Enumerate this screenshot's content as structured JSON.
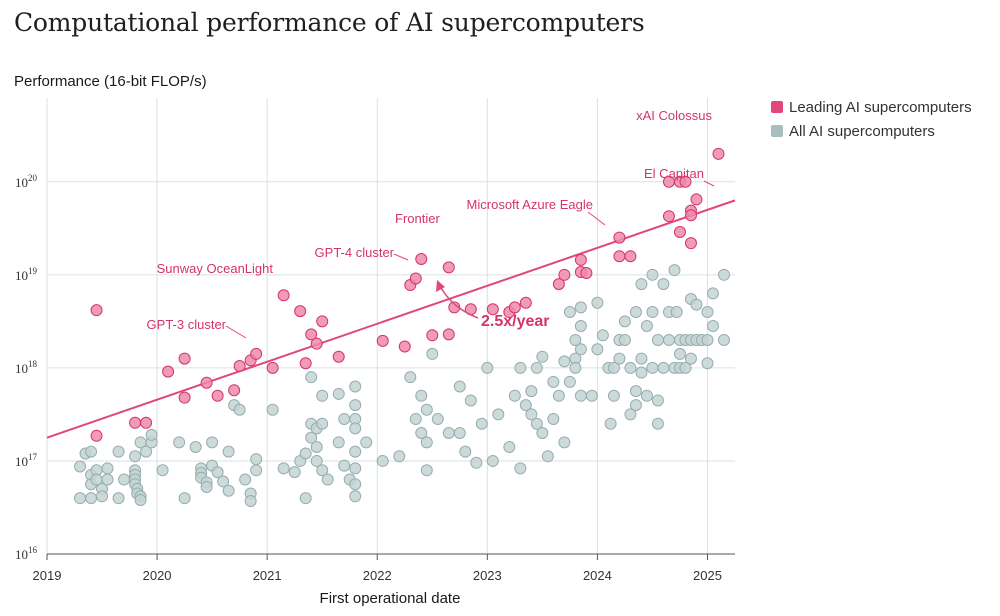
{
  "chart_data": {
    "type": "scatter",
    "title": "Computational performance of AI supercomputers",
    "ylabel": "Performance (16-bit FLOP/s)",
    "xlabel": "First operational date",
    "yscale": "log",
    "ylim_exp": [
      16,
      20.9
    ],
    "xlim": [
      2019,
      2025.25
    ],
    "x_ticks": [
      "2019",
      "2020",
      "2021",
      "2022",
      "2023",
      "2024",
      "2025"
    ],
    "y_ticks": [
      {
        "base": "10",
        "exp": "16"
      },
      {
        "base": "10",
        "exp": "17"
      },
      {
        "base": "10",
        "exp": "18"
      },
      {
        "base": "10",
        "exp": "19"
      },
      {
        "base": "10",
        "exp": "20"
      }
    ],
    "legend": {
      "leading": "Leading AI supercomputers",
      "all": "All AI supercomputers"
    },
    "colors": {
      "leading_fill": "#ee89ab",
      "leading_stroke": "#d4336f",
      "all_fill": "#c3d3d3",
      "all_stroke": "#97adad",
      "trend": "#e0487d",
      "grid": "#d9e2e2",
      "axis": "#555555"
    },
    "trend": {
      "label": "2.5x/year",
      "start": [
        2019,
        17.25
      ],
      "end": [
        2025.25,
        19.8
      ]
    },
    "annotations": [
      {
        "text": "xAI Colossus",
        "x": 2025.1,
        "y": 20.3
      },
      {
        "text": "El Capitan",
        "x": 2024.85,
        "y": 19.75
      },
      {
        "text": "Microsoft Azure Eagle",
        "x": 2023.85,
        "y": 19.45
      },
      {
        "text": "Frontier",
        "x": 2022.4,
        "y": 19.3
      },
      {
        "text": "GPT-4 cluster",
        "x": 2022.35,
        "y": 18.95
      },
      {
        "text": "Sunway OceanLight",
        "x": 2021.15,
        "y": 18.78
      },
      {
        "text": "GPT-3 cluster",
        "x": 2020.8,
        "y": 18.15
      }
    ],
    "series": [
      {
        "name": "Leading AI supercomputers",
        "points": [
          [
            2019.45,
            18.62
          ],
          [
            2019.45,
            17.27
          ],
          [
            2019.8,
            17.41
          ],
          [
            2019.9,
            17.41
          ],
          [
            2020.1,
            17.96
          ],
          [
            2020.25,
            18.1
          ],
          [
            2020.25,
            17.68
          ],
          [
            2020.45,
            17.84
          ],
          [
            2020.55,
            17.7
          ],
          [
            2020.7,
            17.76
          ],
          [
            2020.75,
            18.02
          ],
          [
            2020.85,
            18.08
          ],
          [
            2020.9,
            18.15
          ],
          [
            2021.05,
            18.0
          ],
          [
            2021.15,
            18.78
          ],
          [
            2021.3,
            18.61
          ],
          [
            2021.35,
            18.05
          ],
          [
            2021.4,
            18.36
          ],
          [
            2021.5,
            18.5
          ],
          [
            2021.45,
            18.26
          ],
          [
            2021.65,
            18.12
          ],
          [
            2022.05,
            18.29
          ],
          [
            2022.25,
            18.23
          ],
          [
            2022.3,
            18.89
          ],
          [
            2022.35,
            18.96
          ],
          [
            2022.4,
            19.17
          ],
          [
            2022.5,
            18.35
          ],
          [
            2022.65,
            18.36
          ],
          [
            2022.65,
            19.08
          ],
          [
            2022.7,
            18.65
          ],
          [
            2022.85,
            18.63
          ],
          [
            2023.05,
            18.63
          ],
          [
            2023.2,
            18.6
          ],
          [
            2023.25,
            18.65
          ],
          [
            2023.35,
            18.7
          ],
          [
            2023.65,
            18.9
          ],
          [
            2023.7,
            19.0
          ],
          [
            2023.85,
            19.16
          ],
          [
            2023.85,
            19.03
          ],
          [
            2023.9,
            19.02
          ],
          [
            2024.2,
            19.4
          ],
          [
            2024.2,
            19.2
          ],
          [
            2024.3,
            19.2
          ],
          [
            2024.65,
            19.63
          ],
          [
            2024.65,
            20.0
          ],
          [
            2024.75,
            20.0
          ],
          [
            2024.8,
            20.0
          ],
          [
            2024.75,
            19.46
          ],
          [
            2024.85,
            19.34
          ],
          [
            2024.85,
            19.69
          ],
          [
            2024.85,
            19.64
          ],
          [
            2024.9,
            19.81
          ],
          [
            2025.1,
            20.3
          ]
        ]
      },
      {
        "name": "All AI supercomputers",
        "points": [
          [
            2019.3,
            16.94
          ],
          [
            2019.3,
            16.6
          ],
          [
            2019.35,
            17.08
          ],
          [
            2019.4,
            17.1
          ],
          [
            2019.4,
            16.85
          ],
          [
            2019.4,
            16.75
          ],
          [
            2019.4,
            16.6
          ],
          [
            2019.45,
            16.9
          ],
          [
            2019.45,
            16.8
          ],
          [
            2019.5,
            16.7
          ],
          [
            2019.5,
            16.62
          ],
          [
            2019.55,
            16.92
          ],
          [
            2019.55,
            16.8
          ],
          [
            2019.65,
            17.1
          ],
          [
            2019.65,
            16.6
          ],
          [
            2019.7,
            16.8
          ],
          [
            2019.8,
            17.05
          ],
          [
            2019.8,
            16.9
          ],
          [
            2019.8,
            16.85
          ],
          [
            2019.8,
            16.8
          ],
          [
            2019.8,
            16.75
          ],
          [
            2019.82,
            16.7
          ],
          [
            2019.82,
            16.65
          ],
          [
            2019.85,
            16.62
          ],
          [
            2019.85,
            16.58
          ],
          [
            2019.85,
            17.2
          ],
          [
            2019.9,
            17.1
          ],
          [
            2019.95,
            17.2
          ],
          [
            2019.95,
            17.28
          ],
          [
            2020.05,
            16.9
          ],
          [
            2020.2,
            17.2
          ],
          [
            2020.25,
            16.6
          ],
          [
            2020.35,
            17.15
          ],
          [
            2020.4,
            16.92
          ],
          [
            2020.4,
            16.87
          ],
          [
            2020.4,
            16.82
          ],
          [
            2020.45,
            16.77
          ],
          [
            2020.45,
            16.72
          ],
          [
            2020.5,
            17.2
          ],
          [
            2020.5,
            16.95
          ],
          [
            2020.55,
            16.88
          ],
          [
            2020.6,
            16.78
          ],
          [
            2020.65,
            17.1
          ],
          [
            2020.65,
            16.68
          ],
          [
            2020.7,
            17.6
          ],
          [
            2020.75,
            17.55
          ],
          [
            2020.8,
            16.8
          ],
          [
            2020.85,
            16.65
          ],
          [
            2020.85,
            16.57
          ],
          [
            2020.9,
            16.9
          ],
          [
            2020.9,
            17.02
          ],
          [
            2021.05,
            17.55
          ],
          [
            2021.15,
            16.92
          ],
          [
            2021.25,
            16.88
          ],
          [
            2021.3,
            17.0
          ],
          [
            2021.35,
            17.08
          ],
          [
            2021.4,
            17.25
          ],
          [
            2021.4,
            17.4
          ],
          [
            2021.45,
            17.35
          ],
          [
            2021.45,
            17.15
          ],
          [
            2021.45,
            17.0
          ],
          [
            2021.5,
            17.7
          ],
          [
            2021.5,
            17.4
          ],
          [
            2021.5,
            16.9
          ],
          [
            2021.55,
            16.8
          ],
          [
            2021.35,
            16.6
          ],
          [
            2021.4,
            17.9
          ],
          [
            2021.65,
            17.72
          ],
          [
            2021.65,
            17.2
          ],
          [
            2021.7,
            17.45
          ],
          [
            2021.7,
            16.95
          ],
          [
            2021.75,
            16.8
          ],
          [
            2021.8,
            17.8
          ],
          [
            2021.8,
            17.6
          ],
          [
            2021.8,
            17.45
          ],
          [
            2021.8,
            17.35
          ],
          [
            2021.8,
            17.1
          ],
          [
            2021.8,
            16.92
          ],
          [
            2021.8,
            16.75
          ],
          [
            2021.8,
            16.62
          ],
          [
            2021.9,
            17.2
          ],
          [
            2022.05,
            17.0
          ],
          [
            2022.2,
            17.05
          ],
          [
            2022.3,
            17.9
          ],
          [
            2022.35,
            17.45
          ],
          [
            2022.4,
            17.7
          ],
          [
            2022.4,
            17.3
          ],
          [
            2022.45,
            17.55
          ],
          [
            2022.45,
            17.2
          ],
          [
            2022.45,
            16.9
          ],
          [
            2022.5,
            18.15
          ],
          [
            2022.55,
            17.45
          ],
          [
            2022.65,
            17.3
          ],
          [
            2022.75,
            17.8
          ],
          [
            2022.75,
            17.3
          ],
          [
            2022.8,
            17.1
          ],
          [
            2022.85,
            17.65
          ],
          [
            2022.9,
            16.98
          ],
          [
            2022.95,
            17.4
          ],
          [
            2023.0,
            18.0
          ],
          [
            2023.05,
            17.0
          ],
          [
            2023.1,
            17.5
          ],
          [
            2023.2,
            17.15
          ],
          [
            2023.25,
            17.7
          ],
          [
            2023.3,
            16.92
          ],
          [
            2023.3,
            18.0
          ],
          [
            2023.35,
            17.6
          ],
          [
            2023.4,
            17.75
          ],
          [
            2023.4,
            17.5
          ],
          [
            2023.45,
            18.0
          ],
          [
            2023.45,
            17.4
          ],
          [
            2023.5,
            18.12
          ],
          [
            2023.5,
            17.3
          ],
          [
            2023.55,
            17.05
          ],
          [
            2023.6,
            17.85
          ],
          [
            2023.6,
            17.45
          ],
          [
            2023.65,
            17.7
          ],
          [
            2023.7,
            18.07
          ],
          [
            2023.7,
            17.2
          ],
          [
            2023.75,
            18.6
          ],
          [
            2023.75,
            17.85
          ],
          [
            2023.8,
            18.3
          ],
          [
            2023.8,
            18.1
          ],
          [
            2023.8,
            18.0
          ],
          [
            2023.85,
            18.65
          ],
          [
            2023.85,
            18.45
          ],
          [
            2023.85,
            18.2
          ],
          [
            2023.85,
            17.7
          ],
          [
            2023.95,
            17.7
          ],
          [
            2024.0,
            18.7
          ],
          [
            2024.0,
            18.2
          ],
          [
            2024.05,
            18.35
          ],
          [
            2024.1,
            18.0
          ],
          [
            2024.12,
            17.4
          ],
          [
            2024.15,
            18.0
          ],
          [
            2024.15,
            17.7
          ],
          [
            2024.2,
            18.3
          ],
          [
            2024.2,
            18.1
          ],
          [
            2024.25,
            18.5
          ],
          [
            2024.25,
            18.3
          ],
          [
            2024.3,
            18.0
          ],
          [
            2024.3,
            17.5
          ],
          [
            2024.35,
            18.6
          ],
          [
            2024.35,
            17.75
          ],
          [
            2024.35,
            17.6
          ],
          [
            2024.4,
            18.9
          ],
          [
            2024.4,
            18.1
          ],
          [
            2024.4,
            17.95
          ],
          [
            2024.45,
            18.45
          ],
          [
            2024.45,
            17.7
          ],
          [
            2024.5,
            19.0
          ],
          [
            2024.5,
            18.6
          ],
          [
            2024.5,
            18.0
          ],
          [
            2024.55,
            18.3
          ],
          [
            2024.55,
            17.65
          ],
          [
            2024.55,
            17.4
          ],
          [
            2024.6,
            18.9
          ],
          [
            2024.6,
            18.0
          ],
          [
            2024.65,
            18.6
          ],
          [
            2024.65,
            18.3
          ],
          [
            2024.7,
            19.05
          ],
          [
            2024.7,
            18.0
          ],
          [
            2024.72,
            18.6
          ],
          [
            2024.75,
            18.3
          ],
          [
            2024.75,
            18.15
          ],
          [
            2024.75,
            18.0
          ],
          [
            2024.8,
            18.3
          ],
          [
            2024.8,
            18.0
          ],
          [
            2024.85,
            18.74
          ],
          [
            2024.85,
            18.3
          ],
          [
            2024.85,
            18.1
          ],
          [
            2024.9,
            18.68
          ],
          [
            2024.9,
            18.3
          ],
          [
            2024.95,
            18.3
          ],
          [
            2025.0,
            18.6
          ],
          [
            2025.0,
            18.3
          ],
          [
            2025.0,
            18.05
          ],
          [
            2025.05,
            18.8
          ],
          [
            2025.05,
            18.45
          ],
          [
            2025.15,
            19.0
          ],
          [
            2025.15,
            18.3
          ]
        ]
      }
    ]
  }
}
